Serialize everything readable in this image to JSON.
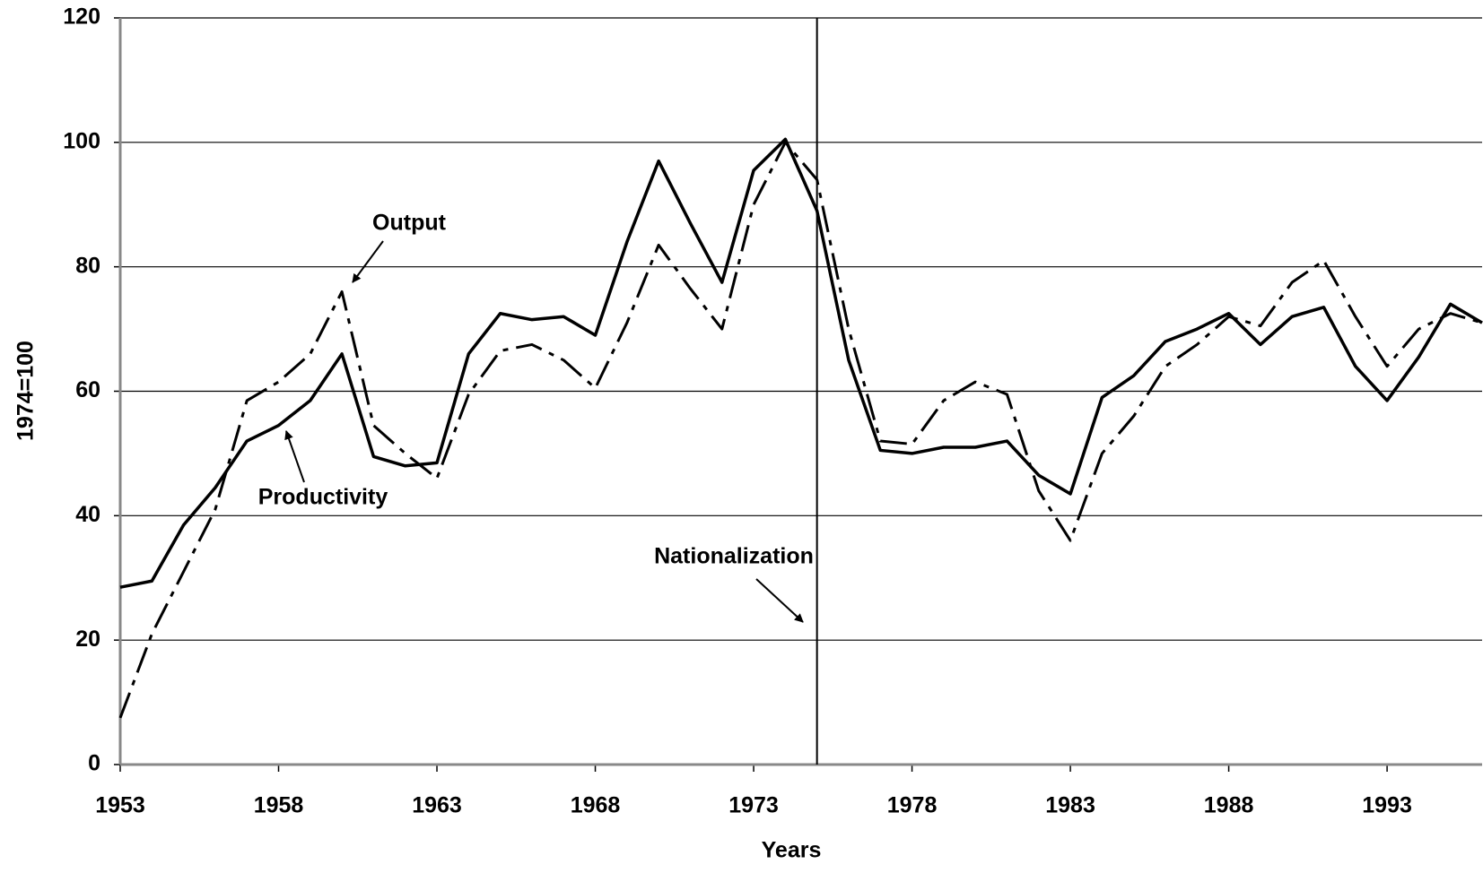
{
  "chart_data": {
    "type": "line",
    "x": [
      1953,
      1954,
      1955,
      1956,
      1957,
      1958,
      1959,
      1960,
      1961,
      1962,
      1963,
      1964,
      1965,
      1966,
      1967,
      1968,
      1969,
      1970,
      1971,
      1972,
      1973,
      1974,
      1975,
      1976,
      1977,
      1978,
      1979,
      1980,
      1981,
      1982,
      1983,
      1984,
      1985,
      1986,
      1987,
      1988,
      1989,
      1990,
      1991,
      1992,
      1993,
      1994,
      1995,
      1996
    ],
    "series": [
      {
        "name": "Productivity",
        "color": "#000000",
        "dash": "solid",
        "values": [
          28.5,
          29.5,
          38.5,
          44.5,
          52,
          54.5,
          58.5,
          66,
          49.5,
          48,
          48.5,
          66,
          72.5,
          71.5,
          72,
          69,
          84,
          97,
          87,
          77.5,
          95.5,
          100.5,
          89,
          65,
          50.5,
          50,
          51,
          51,
          52,
          46.5,
          43.5,
          59,
          62.5,
          68,
          70,
          72.5,
          67.5,
          72,
          73.5,
          64,
          58.5,
          65.5,
          74,
          71
        ]
      },
      {
        "name": "Output",
        "color": "#000000",
        "dash": "dashdot",
        "values": [
          7.5,
          21,
          31,
          41,
          58.5,
          61.5,
          66,
          76,
          54.5,
          50,
          46,
          59.5,
          66.5,
          67.5,
          65,
          60.5,
          71,
          83.5,
          76.5,
          70,
          90,
          100,
          94,
          70,
          52,
          51.5,
          58.5,
          61.5,
          59.5,
          44,
          36,
          50,
          56,
          64,
          67.5,
          72,
          70.5,
          77.5,
          81,
          72,
          64,
          70,
          72.5,
          71
        ]
      }
    ],
    "xlabel": "Years",
    "ylabel": "1974=100",
    "xlim": [
      1953,
      1996
    ],
    "xticks": [
      1953,
      1958,
      1963,
      1968,
      1973,
      1978,
      1983,
      1988,
      1993
    ],
    "ylim": [
      0,
      120
    ],
    "yticks": [
      0,
      20,
      40,
      60,
      80,
      100,
      120
    ],
    "grid": true,
    "vline": 1975,
    "annotations": [
      "Output",
      "Productivity",
      "Nationalization"
    ]
  }
}
